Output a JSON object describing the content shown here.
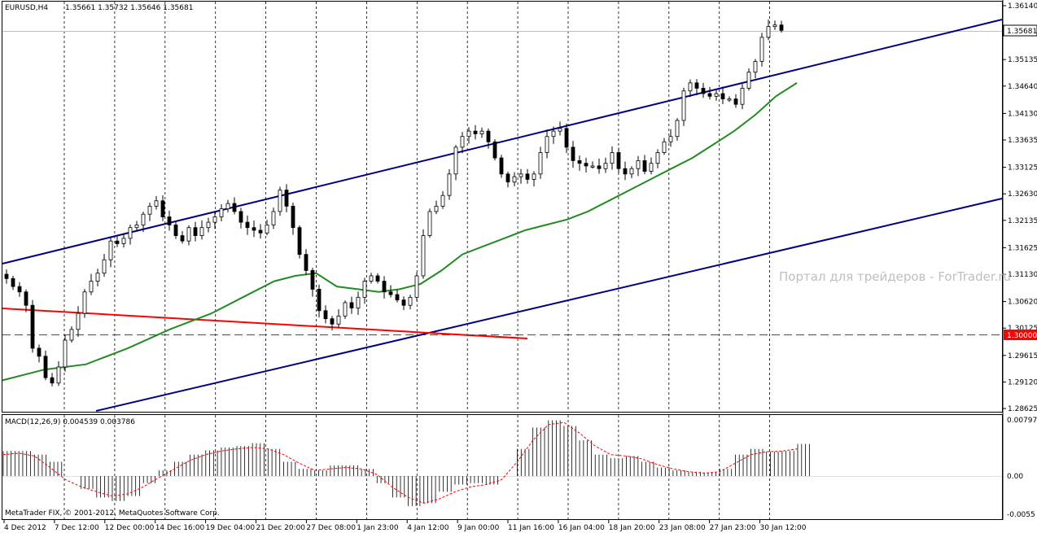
{
  "header": {
    "symbol": "EURUSD,H4",
    "ohlc": "1.35661 1.35732 1.35646 1.35681"
  },
  "watermark": "Портал для трейдеров - ForTrader.ru",
  "copyright": "MetaTrader FIX, © 2001-2012, MetaQuotes Software Corp.",
  "macd": {
    "label": "MACD(12,26,9) 0.004539 0.003786",
    "ticks": [
      "0.007975",
      "0.00",
      "-0.0055"
    ]
  },
  "colors": {
    "candles": "#000000",
    "channel": "#000080",
    "moving_average": "#228B22",
    "trendline": "#ff0000",
    "level_1_30000": "#ff0000",
    "macd_histogram": "#000000",
    "macd_signal": "#ff0000",
    "current_price_marker": "#ffffff"
  },
  "chart_data": {
    "type": "candlestick",
    "symbol": "EURUSD",
    "timeframe": "H4",
    "current_price": "1.35681",
    "horizontal_level": "1.30000",
    "price_axis_ticks": [
      "1.36140",
      "1.35135",
      "1.34640",
      "1.34130",
      "1.33635",
      "1.33125",
      "1.32630",
      "1.32135",
      "1.31625",
      "1.31130",
      "1.30620",
      "1.30125",
      "1.29615",
      "1.29120",
      "1.28625"
    ],
    "time_axis_ticks": [
      "4 Dec 2012",
      "7 Dec 12:00",
      "12 Dec 00:00",
      "14 Dec 16:00",
      "19 Dec 04:00",
      "21 Dec 20:00",
      "27 Dec 08:00",
      "1 Jan 23:00",
      "4 Jan 12:00",
      "9 Jan 00:00",
      "11 Jan 16:00",
      "16 Jan 04:00",
      "18 Jan 20:00",
      "23 Jan 08:00",
      "27 Jan 23:00",
      "30 Jan 12:00"
    ],
    "price_path": [
      [
        0,
        1.3105
      ],
      [
        2,
        1.309
      ],
      [
        4,
        1.308
      ],
      [
        5,
        1.3055
      ],
      [
        6,
        1.2975
      ],
      [
        7,
        1.296
      ],
      [
        8,
        1.292
      ],
      [
        9,
        1.291
      ],
      [
        10,
        1.294
      ],
      [
        11,
        1.299
      ],
      [
        12,
        1.301
      ],
      [
        13,
        1.304
      ],
      [
        14,
        1.308
      ],
      [
        15,
        1.31
      ],
      [
        16,
        1.3115
      ],
      [
        17,
        1.314
      ],
      [
        18,
        1.3175
      ],
      [
        19,
        1.317
      ],
      [
        20,
        1.318
      ],
      [
        21,
        1.32
      ],
      [
        22,
        1.3205
      ],
      [
        23,
        1.3225
      ],
      [
        24,
        1.324
      ],
      [
        25,
        1.325
      ],
      [
        26,
        1.322
      ],
      [
        27,
        1.3205
      ],
      [
        28,
        1.3185
      ],
      [
        29,
        1.3175
      ],
      [
        30,
        1.32
      ],
      [
        31,
        1.3185
      ],
      [
        32,
        1.32
      ],
      [
        33,
        1.321
      ],
      [
        34,
        1.322
      ],
      [
        35,
        1.3235
      ],
      [
        36,
        1.3245
      ],
      [
        37,
        1.323
      ],
      [
        38,
        1.321
      ],
      [
        39,
        1.32
      ],
      [
        40,
        1.3195
      ],
      [
        41,
        1.319
      ],
      [
        42,
        1.3205
      ],
      [
        43,
        1.323
      ],
      [
        44,
        1.327
      ],
      [
        45,
        1.324
      ],
      [
        46,
        1.32
      ],
      [
        47,
        1.315
      ],
      [
        48,
        1.312
      ],
      [
        49,
        1.3085
      ],
      [
        50,
        1.3045
      ],
      [
        51,
        1.303
      ],
      [
        52,
        1.302
      ],
      [
        53,
        1.3035
      ],
      [
        54,
        1.306
      ],
      [
        55,
        1.305
      ],
      [
        56,
        1.307
      ],
      [
        57,
        1.31
      ],
      [
        58,
        1.311
      ],
      [
        59,
        1.31
      ],
      [
        60,
        1.308
      ],
      [
        61,
        1.3075
      ],
      [
        62,
        1.3065
      ],
      [
        63,
        1.3055
      ],
      [
        64,
        1.307
      ],
      [
        65,
        1.311
      ],
      [
        66,
        1.3185
      ],
      [
        67,
        1.323
      ],
      [
        68,
        1.324
      ],
      [
        69,
        1.326
      ],
      [
        70,
        1.33
      ],
      [
        71,
        1.335
      ],
      [
        72,
        1.337
      ],
      [
        73,
        1.338
      ],
      [
        74,
        1.3375
      ],
      [
        75,
        1.338
      ],
      [
        76,
        1.336
      ],
      [
        77,
        1.333
      ],
      [
        78,
        1.33
      ],
      [
        79,
        1.3285
      ],
      [
        80,
        1.3295
      ],
      [
        81,
        1.33
      ],
      [
        82,
        1.329
      ],
      [
        83,
        1.33
      ],
      [
        84,
        1.334
      ],
      [
        85,
        1.337
      ],
      [
        86,
        1.338
      ],
      [
        87,
        1.3385
      ],
      [
        88,
        1.335
      ],
      [
        89,
        1.3325
      ],
      [
        90,
        1.332
      ],
      [
        91,
        1.3315
      ],
      [
        92,
        1.3315
      ],
      [
        93,
        1.331
      ],
      [
        94,
        1.332
      ],
      [
        95,
        1.334
      ],
      [
        96,
        1.331
      ],
      [
        97,
        1.33
      ],
      [
        98,
        1.331
      ],
      [
        99,
        1.3325
      ],
      [
        100,
        1.3305
      ],
      [
        101,
        1.332
      ],
      [
        102,
        1.334
      ],
      [
        103,
        1.336
      ],
      [
        104,
        1.337
      ],
      [
        105,
        1.34
      ],
      [
        106,
        1.3455
      ],
      [
        107,
        1.347
      ],
      [
        108,
        1.346
      ],
      [
        109,
        1.345
      ],
      [
        110,
        1.3445
      ],
      [
        111,
        1.345
      ],
      [
        112,
        1.344
      ],
      [
        113,
        1.344
      ],
      [
        114,
        1.343
      ],
      [
        115,
        1.346
      ],
      [
        116,
        1.349
      ],
      [
        117,
        1.351
      ],
      [
        118,
        1.3555
      ],
      [
        119,
        1.3575
      ],
      [
        120,
        1.3578
      ],
      [
        121,
        1.3568
      ]
    ],
    "moving_average": [
      [
        0,
        1.2915
      ],
      [
        10,
        1.2935
      ],
      [
        20,
        1.2945
      ],
      [
        30,
        1.2975
      ],
      [
        40,
        1.301
      ],
      [
        50,
        1.304
      ],
      [
        60,
        1.308
      ],
      [
        65,
        1.31
      ],
      [
        70,
        1.311
      ],
      [
        75,
        1.3115
      ],
      [
        80,
        1.309
      ],
      [
        85,
        1.3085
      ],
      [
        90,
        1.308
      ],
      [
        95,
        1.3085
      ],
      [
        100,
        1.3095
      ],
      [
        105,
        1.312
      ],
      [
        110,
        1.315
      ],
      [
        115,
        1.3165
      ],
      [
        120,
        1.318
      ],
      [
        125,
        1.3195
      ],
      [
        130,
        1.3205
      ],
      [
        135,
        1.3215
      ],
      [
        140,
        1.323
      ],
      [
        145,
        1.325
      ],
      [
        150,
        1.327
      ],
      [
        155,
        1.329
      ],
      [
        160,
        1.331
      ],
      [
        165,
        1.333
      ],
      [
        170,
        1.3355
      ],
      [
        175,
        1.338
      ],
      [
        180,
        1.341
      ],
      [
        185,
        1.3445
      ],
      [
        190,
        1.347
      ]
    ],
    "macd": {
      "label": "MACD(12,26,9)",
      "main": "0.004539",
      "signal": "0.003786",
      "scale_max": 0.007975,
      "scale_min": -0.0055,
      "histogram": [
        0.0035,
        0.0035,
        0.003,
        0.002,
        0.0,
        -0.0018,
        -0.003,
        -0.0035,
        -0.0028,
        -0.001,
        0.0008,
        0.002,
        0.003,
        0.0036,
        0.004,
        0.0042,
        0.0046,
        0.0038,
        0.002,
        0.001,
        0.0008,
        0.0015,
        0.0015,
        0.001,
        -0.001,
        -0.003,
        -0.0042,
        -0.0038,
        -0.0022,
        -0.0012,
        -0.001,
        -0.0012,
        0.0,
        0.0038,
        0.0068,
        0.0078,
        0.007,
        0.005,
        0.003,
        0.0025,
        0.0028,
        0.002,
        0.0012,
        0.0008,
        0.0006,
        0.0005,
        0.001,
        0.003,
        0.0038,
        0.0034,
        0.0035,
        0.0045
      ],
      "signal_line": [
        0.003,
        0.0032,
        0.0028,
        0.0012,
        -0.0005,
        -0.0015,
        -0.0022,
        -0.0028,
        -0.0025,
        -0.0015,
        -0.0002,
        0.001,
        0.0022,
        0.003,
        0.0035,
        0.0038,
        0.004,
        0.0038,
        0.003,
        0.0018,
        0.0008,
        0.001,
        0.0012,
        0.001,
        0.0002,
        -0.0016,
        -0.003,
        -0.0038,
        -0.0032,
        -0.0022,
        -0.0015,
        -0.0012,
        -0.0005,
        0.002,
        0.005,
        0.0072,
        0.0075,
        0.006,
        0.0042,
        0.003,
        0.0028,
        0.0024,
        0.0016,
        0.001,
        0.0006,
        0.0004,
        0.0006,
        0.0018,
        0.003,
        0.0034,
        0.0035,
        0.0038
      ]
    }
  }
}
